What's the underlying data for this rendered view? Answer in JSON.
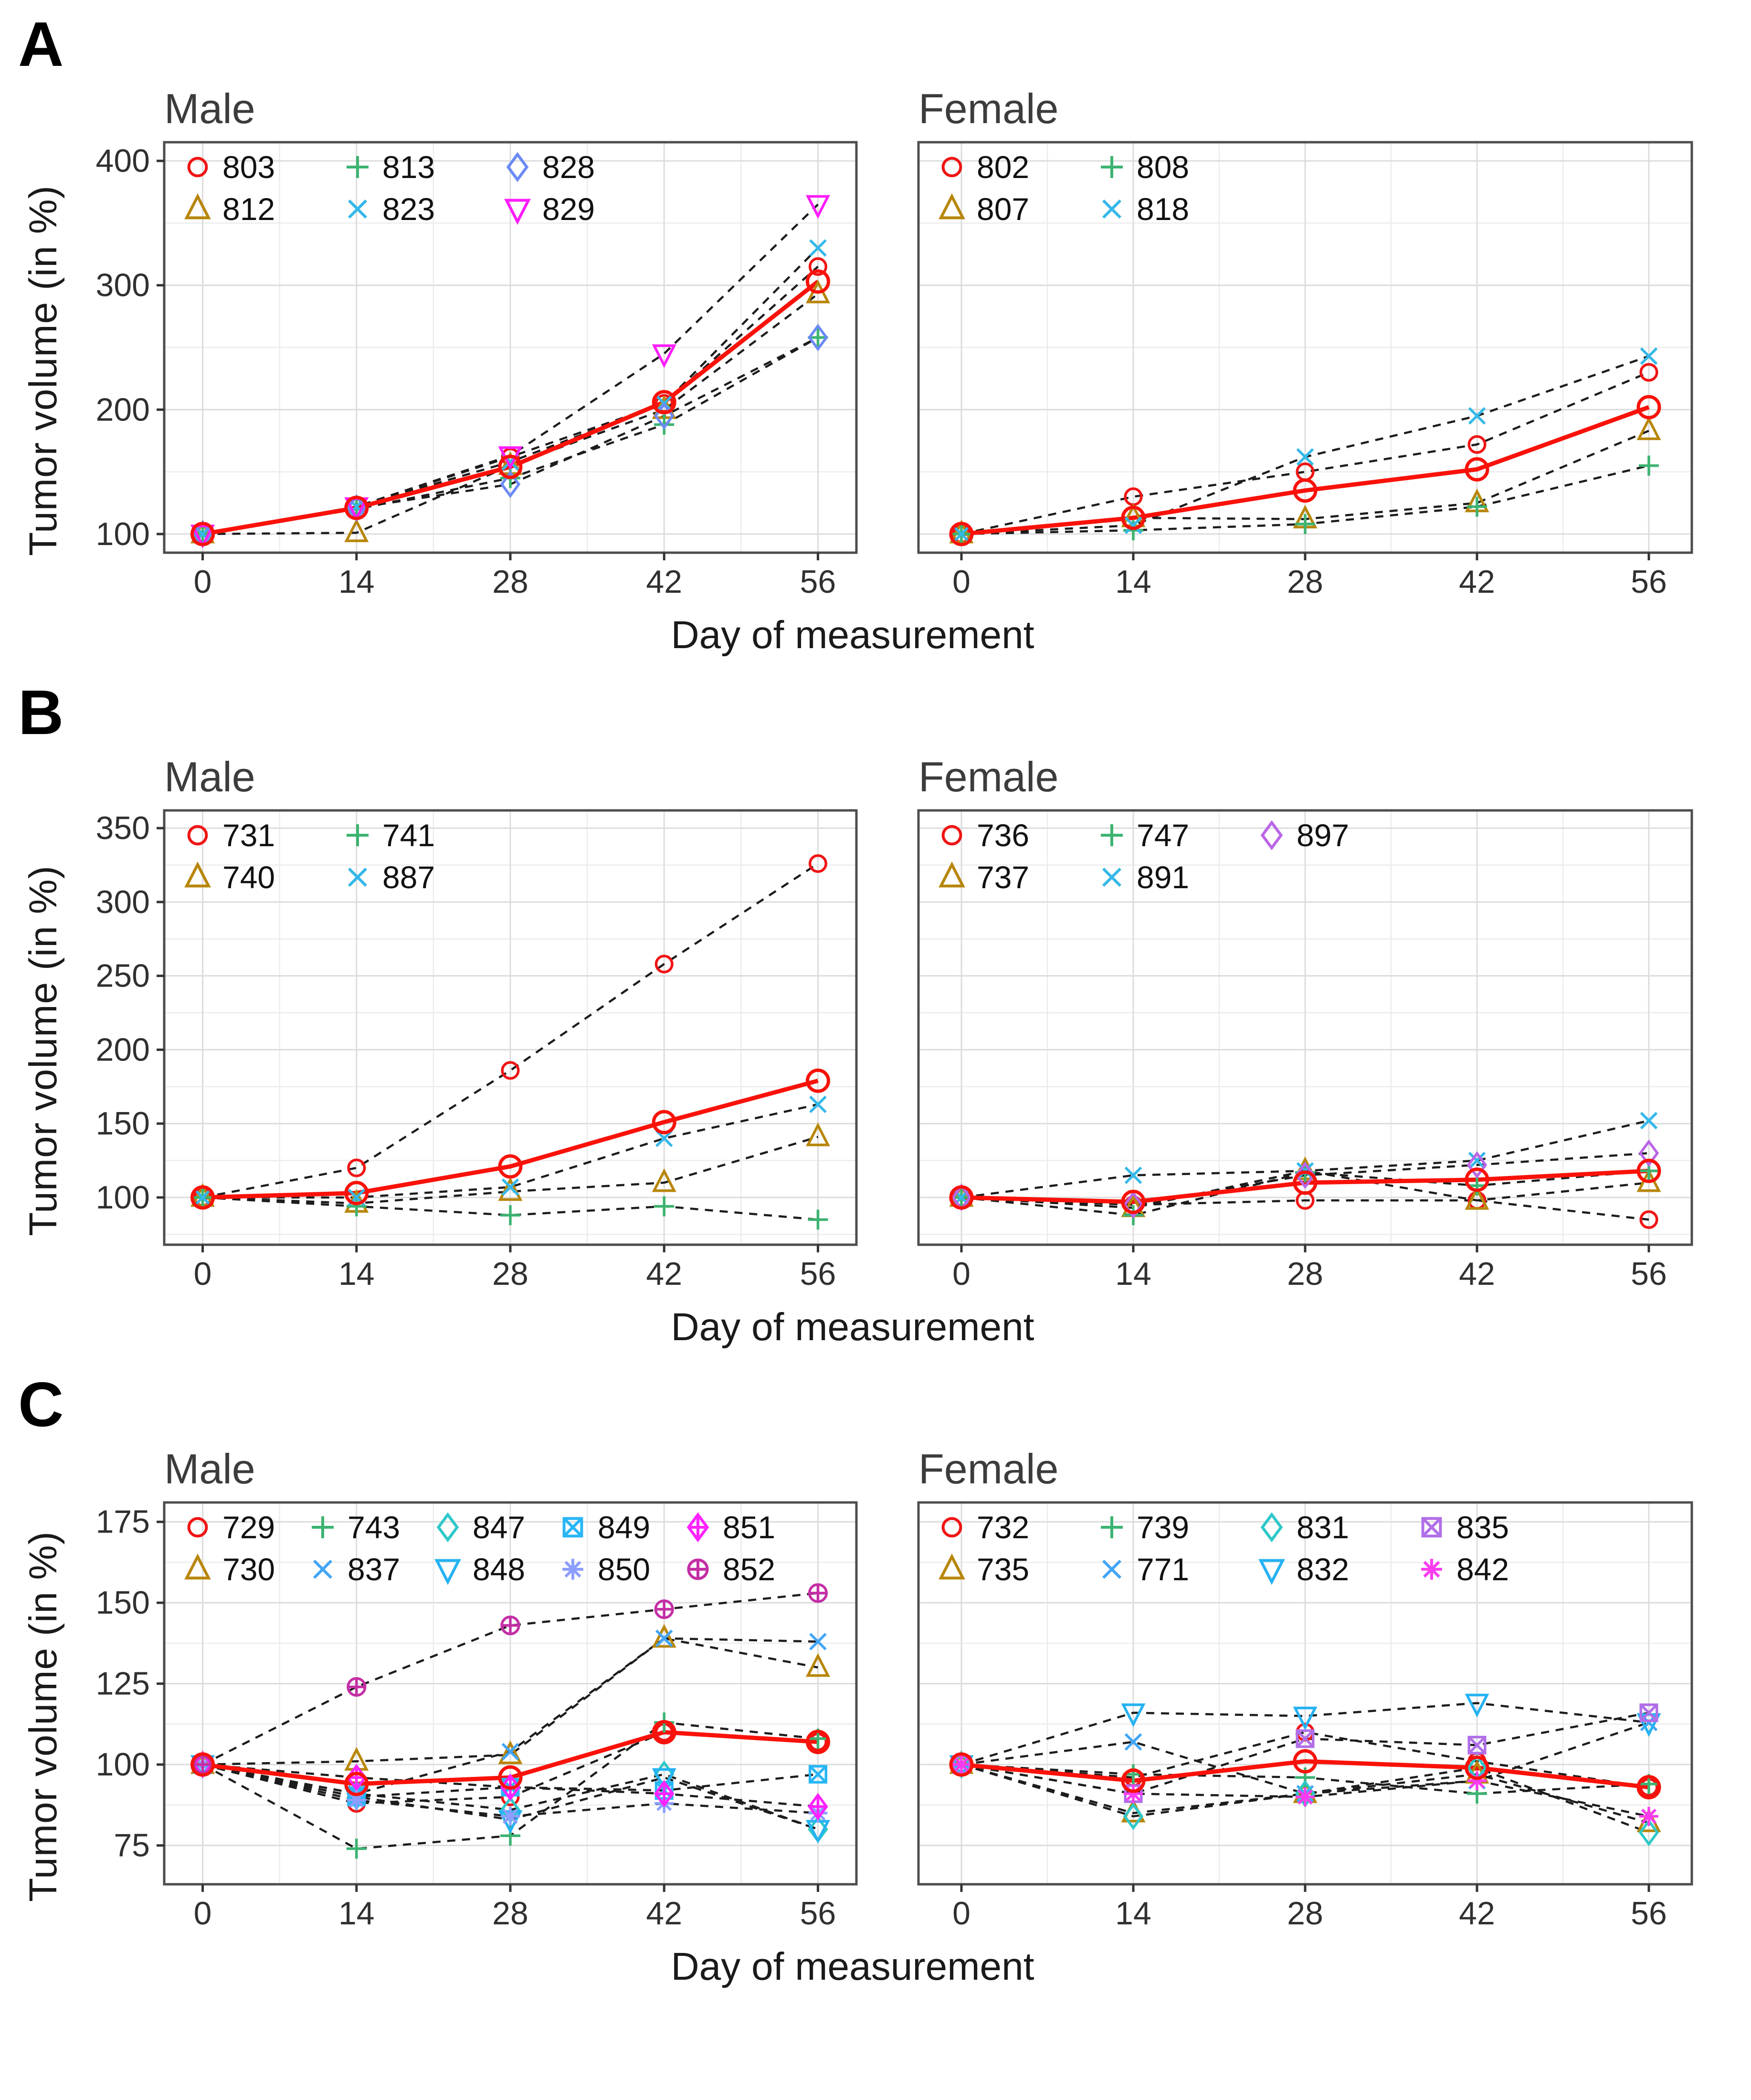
{
  "shared": {
    "x_label": "Day of measurement",
    "y_label": "Tumor volume (in %)"
  },
  "panels": [
    {
      "letter": "A",
      "charts": [
        0,
        1
      ]
    },
    {
      "letter": "B",
      "charts": [
        2,
        3
      ]
    },
    {
      "letter": "C",
      "charts": [
        4,
        5
      ]
    }
  ],
  "style": {
    "mean_color": "#f8120a",
    "dash_line_color": "#1c1c1c",
    "major_grid_color": "#dcdcdc",
    "minor_grid_color": "#ececec",
    "panel_border_color": "#4d4d4d",
    "tick_color": "#333333",
    "tick_label_color": "#303030",
    "legend_text_color": "#111111"
  },
  "chart_data": [
    {
      "panel": "A",
      "type": "line",
      "title": "Male",
      "xlabel": "Day of measurement",
      "ylabel": "Tumor volume (in %)",
      "x": [
        0,
        14,
        28,
        42,
        56
      ],
      "xticks": [
        0,
        14,
        28,
        42,
        56
      ],
      "yticks": [
        100,
        200,
        300,
        400
      ],
      "xlim": [
        -3.5,
        59.5
      ],
      "ylim": [
        85,
        415
      ],
      "grid": "major+minor",
      "legend_position": "top-left-inside",
      "series": [
        {
          "name": "803",
          "marker": "circle",
          "color": "#f01414",
          "values": [
            100,
            122,
            162,
            205,
            315
          ]
        },
        {
          "name": "812",
          "marker": "triangle",
          "color": "#b8860b",
          "values": [
            100,
            101,
            155,
            200,
            293
          ]
        },
        {
          "name": "813",
          "marker": "plus",
          "color": "#3cb371",
          "values": [
            100,
            120,
            145,
            188,
            258
          ]
        },
        {
          "name": "823",
          "marker": "x",
          "color": "#35b8e8",
          "values": [
            100,
            122,
            158,
            205,
            330
          ]
        },
        {
          "name": "828",
          "marker": "diamond",
          "color": "#6b8af5",
          "values": [
            100,
            121,
            140,
            195,
            258
          ]
        },
        {
          "name": "829",
          "marker": "triangle-down",
          "color": "#ff1cfc",
          "values": [
            100,
            122,
            163,
            245,
            365
          ]
        }
      ],
      "mean": {
        "name": "mean",
        "marker": "circle",
        "color": "#f8120a",
        "values": [
          100,
          121,
          154,
          206,
          303
        ]
      }
    },
    {
      "panel": "A",
      "type": "line",
      "title": "Female",
      "xlabel": "Day of measurement",
      "ylabel": "Tumor volume (in %)",
      "x": [
        0,
        14,
        28,
        42,
        56
      ],
      "xticks": [
        0,
        14,
        28,
        42,
        56
      ],
      "yticks": [
        100,
        200,
        300,
        400
      ],
      "xlim": [
        -3.5,
        59.5
      ],
      "ylim": [
        85,
        415
      ],
      "grid": "major+minor",
      "legend_position": "top-left-inside",
      "series": [
        {
          "name": "802",
          "marker": "circle",
          "color": "#f01414",
          "values": [
            100,
            130,
            150,
            172,
            230
          ]
        },
        {
          "name": "807",
          "marker": "triangle",
          "color": "#b8860b",
          "values": [
            100,
            113,
            112,
            125,
            183
          ]
        },
        {
          "name": "808",
          "marker": "plus",
          "color": "#3cb371",
          "values": [
            100,
            103,
            108,
            122,
            155
          ]
        },
        {
          "name": "818",
          "marker": "x",
          "color": "#35b8e8",
          "values": [
            100,
            107,
            162,
            195,
            243
          ]
        }
      ],
      "mean": {
        "name": "mean",
        "marker": "circle",
        "color": "#f8120a",
        "values": [
          100,
          113,
          135,
          152,
          202
        ]
      }
    },
    {
      "panel": "B",
      "type": "line",
      "title": "Male",
      "xlabel": "Day of measurement",
      "ylabel": "Tumor volume (in %)",
      "x": [
        0,
        14,
        28,
        42,
        56
      ],
      "xticks": [
        0,
        14,
        28,
        42,
        56
      ],
      "yticks": [
        100,
        150,
        200,
        250,
        300,
        350
      ],
      "xlim": [
        -3.5,
        59.5
      ],
      "ylim": [
        68,
        362
      ],
      "grid": "major+minor",
      "legend_position": "top-left-inside",
      "series": [
        {
          "name": "731",
          "marker": "circle",
          "color": "#f01414",
          "values": [
            100,
            120,
            186,
            258,
            326
          ]
        },
        {
          "name": "740",
          "marker": "triangle",
          "color": "#b8860b",
          "values": [
            100,
            96,
            104,
            110,
            141
          ]
        },
        {
          "name": "741",
          "marker": "plus",
          "color": "#3cb371",
          "values": [
            100,
            94,
            88,
            94,
            85
          ]
        },
        {
          "name": "887",
          "marker": "x",
          "color": "#35b8e8",
          "values": [
            100,
            100,
            107,
            140,
            163
          ]
        }
      ],
      "mean": {
        "name": "mean",
        "marker": "circle",
        "color": "#f8120a",
        "values": [
          100,
          103,
          121,
          151,
          179
        ]
      }
    },
    {
      "panel": "B",
      "type": "line",
      "title": "Female",
      "xlabel": "Day of measurement",
      "ylabel": "Tumor volume (in %)",
      "x": [
        0,
        14,
        28,
        42,
        56
      ],
      "xticks": [
        0,
        14,
        28,
        42,
        56
      ],
      "yticks": [
        100,
        150,
        200,
        250,
        300,
        350
      ],
      "xlim": [
        -3.5,
        59.5
      ],
      "ylim": [
        68,
        362
      ],
      "grid": "major+minor",
      "legend_position": "top-left-inside",
      "series": [
        {
          "name": "736",
          "marker": "circle",
          "color": "#f01414",
          "values": [
            100,
            95,
            98,
            98,
            85
          ]
        },
        {
          "name": "737",
          "marker": "triangle",
          "color": "#b8860b",
          "values": [
            100,
            93,
            118,
            98,
            110
          ]
        },
        {
          "name": "747",
          "marker": "plus",
          "color": "#3cb371",
          "values": [
            100,
            88,
            117,
            108,
            118
          ]
        },
        {
          "name": "891",
          "marker": "x",
          "color": "#35b8e8",
          "values": [
            100,
            115,
            118,
            125,
            152
          ]
        },
        {
          "name": "897",
          "marker": "diamond",
          "color": "#bb66e8",
          "values": [
            100,
            95,
            115,
            122,
            130
          ]
        }
      ],
      "mean": {
        "name": "mean",
        "marker": "circle",
        "color": "#f8120a",
        "values": [
          100,
          97,
          110,
          112,
          118
        ]
      }
    },
    {
      "panel": "C",
      "type": "line",
      "title": "Male",
      "xlabel": "Day of measurement",
      "ylabel": "Tumor volume (in %)",
      "x": [
        0,
        14,
        28,
        42,
        56
      ],
      "xticks": [
        0,
        14,
        28,
        42,
        56
      ],
      "yticks": [
        75,
        100,
        125,
        150,
        175
      ],
      "xlim": [
        -3.5,
        59.5
      ],
      "ylim": [
        63,
        181
      ],
      "grid": "major+minor",
      "legend_position": "top-left-inside",
      "series": [
        {
          "name": "729",
          "marker": "circle",
          "color": "#f01414",
          "values": [
            100,
            88,
            90,
            110,
            107
          ]
        },
        {
          "name": "730",
          "marker": "triangle",
          "color": "#b8860b",
          "values": [
            100,
            101,
            103,
            139,
            130
          ]
        },
        {
          "name": "743",
          "marker": "plus",
          "color": "#3cb371",
          "values": [
            100,
            74,
            78,
            113,
            108
          ]
        },
        {
          "name": "837",
          "marker": "x",
          "color": "#42a5f5",
          "values": [
            100,
            91,
            104,
            139,
            138
          ]
        },
        {
          "name": "847",
          "marker": "diamond",
          "color": "#2ec8c8",
          "values": [
            100,
            91,
            86,
            97,
            80
          ]
        },
        {
          "name": "848",
          "marker": "triangle-down",
          "color": "#25b2f2",
          "values": [
            100,
            90,
            83,
            96,
            80
          ]
        },
        {
          "name": "849",
          "marker": "square-x",
          "color": "#29b6f6",
          "values": [
            100,
            90,
            93,
            92,
            97
          ]
        },
        {
          "name": "850",
          "marker": "asterisk",
          "color": "#8c9eff",
          "values": [
            100,
            89,
            84,
            88,
            85
          ]
        },
        {
          "name": "851",
          "marker": "diamond-plus",
          "color": "#ff22ff",
          "values": [
            100,
            96,
            93,
            91,
            87
          ]
        },
        {
          "name": "852",
          "marker": "circle-plus",
          "color": "#c42fa5",
          "values": [
            100,
            124,
            143,
            148,
            153
          ]
        }
      ],
      "mean": {
        "name": "mean",
        "marker": "circle",
        "color": "#f8120a",
        "values": [
          100,
          94,
          96,
          110,
          107
        ]
      }
    },
    {
      "panel": "C",
      "type": "line",
      "title": "Female",
      "xlabel": "Day of measurement",
      "ylabel": "Tumor volume (in %)",
      "x": [
        0,
        14,
        28,
        42,
        56
      ],
      "xticks": [
        0,
        14,
        28,
        42,
        56
      ],
      "yticks": [
        75,
        100,
        125,
        150,
        175
      ],
      "xlim": [
        -3.5,
        59.5
      ],
      "ylim": [
        63,
        181
      ],
      "grid": "major+minor",
      "legend_position": "top-left-inside",
      "series": [
        {
          "name": "732",
          "marker": "circle",
          "color": "#f01414",
          "values": [
            100,
            96,
            110,
            101,
            93
          ]
        },
        {
          "name": "735",
          "marker": "triangle",
          "color": "#b8860b",
          "values": [
            100,
            85,
            91,
            97,
            82
          ]
        },
        {
          "name": "739",
          "marker": "plus",
          "color": "#3cb371",
          "values": [
            100,
            97,
            96,
            91,
            94
          ]
        },
        {
          "name": "771",
          "marker": "x",
          "color": "#42a5f5",
          "values": [
            100,
            107,
            91,
            95,
            113
          ]
        },
        {
          "name": "831",
          "marker": "diamond",
          "color": "#2ec8c8",
          "values": [
            100,
            84,
            91,
            99,
            79
          ]
        },
        {
          "name": "832",
          "marker": "triangle-down",
          "color": "#25b2f2",
          "values": [
            100,
            116,
            115,
            119,
            113
          ]
        },
        {
          "name": "835",
          "marker": "square-x",
          "color": "#b06fe8",
          "values": [
            100,
            91,
            108,
            106,
            116
          ]
        },
        {
          "name": "842",
          "marker": "asterisk",
          "color": "#fa3cf0",
          "values": [
            100,
            91,
            90,
            95,
            84
          ]
        }
      ],
      "mean": {
        "name": "mean",
        "marker": "circle",
        "color": "#f8120a",
        "values": [
          100,
          95,
          101,
          99,
          93
        ]
      }
    }
  ]
}
